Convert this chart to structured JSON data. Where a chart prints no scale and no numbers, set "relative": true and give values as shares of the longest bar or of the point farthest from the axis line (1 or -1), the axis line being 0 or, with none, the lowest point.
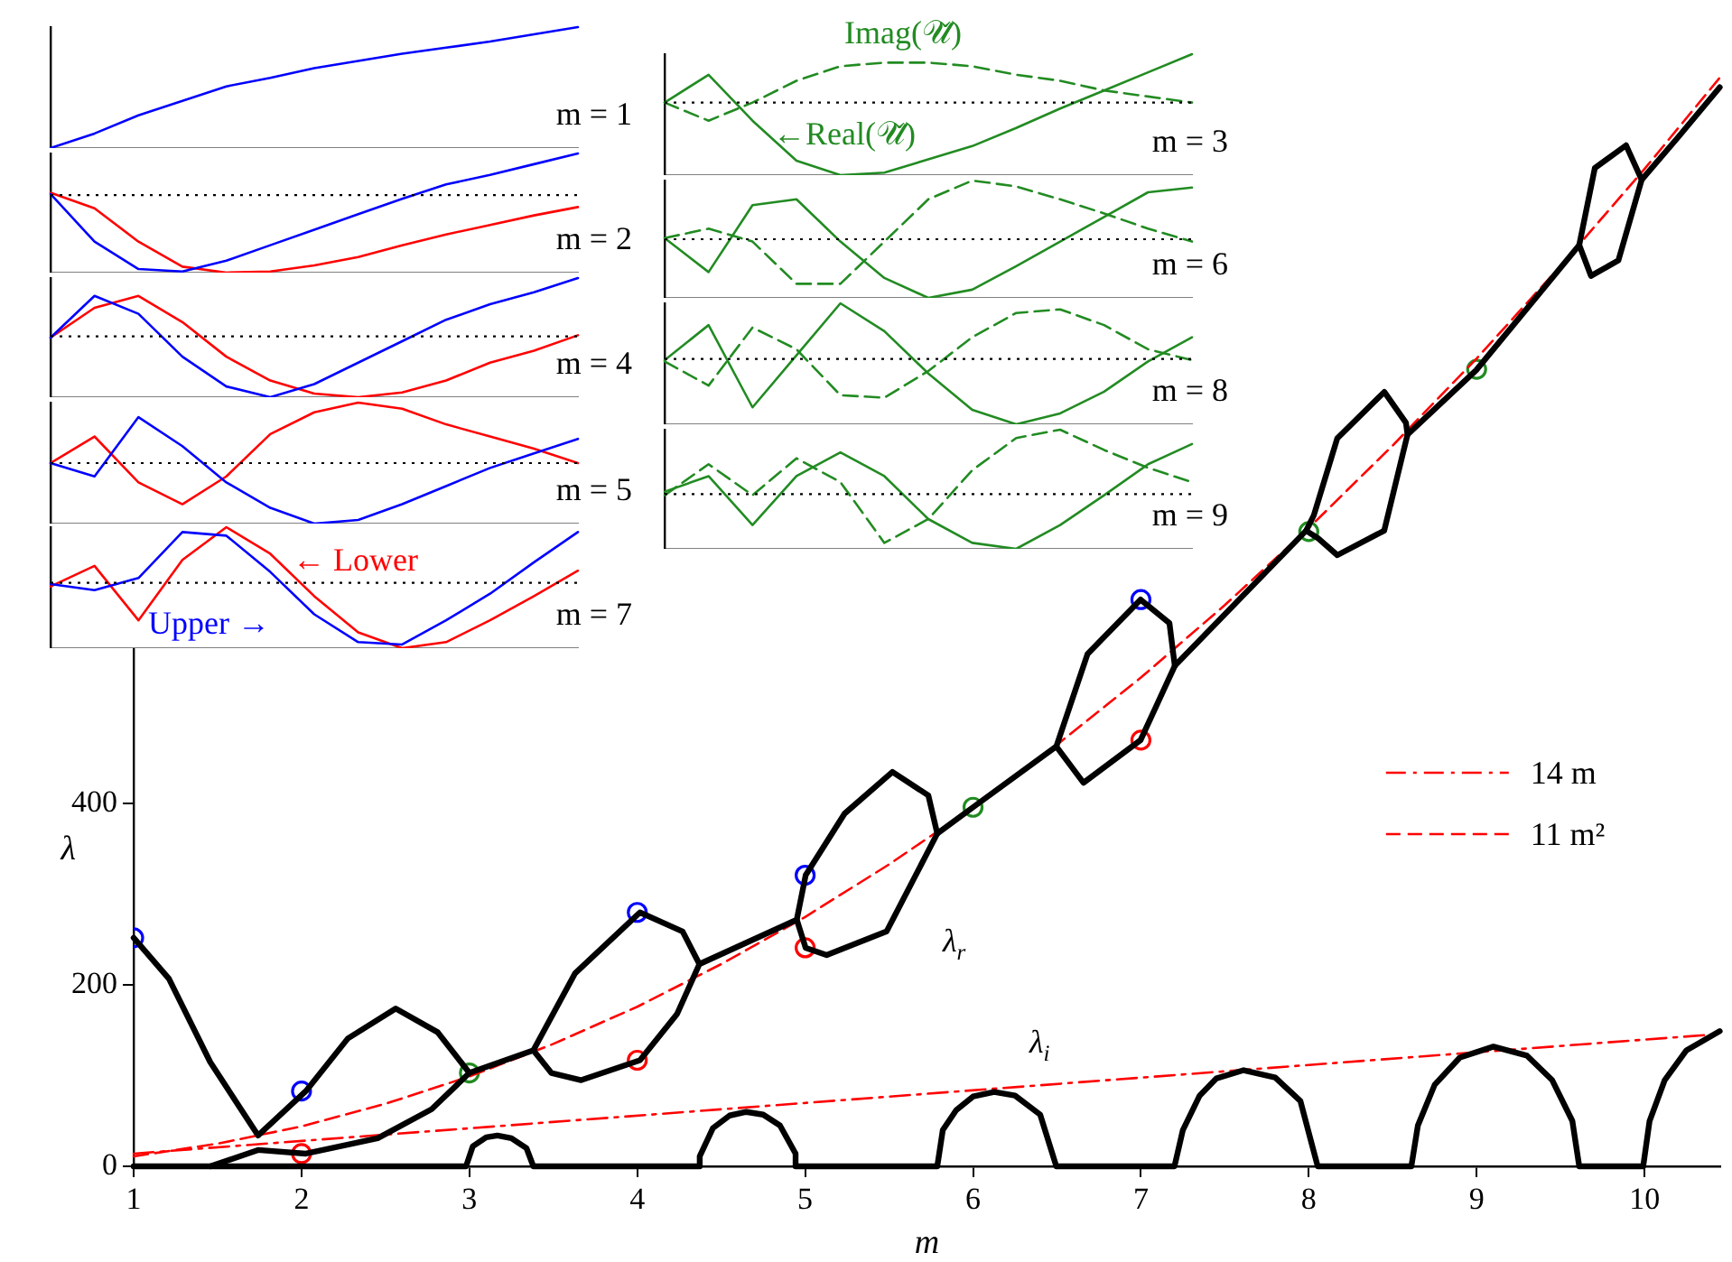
{
  "chart_data": [
    {
      "type": "line",
      "xlabel": "m",
      "ylabel": "λ",
      "xlim": [
        1,
        10.45
      ],
      "ylim": [
        0,
        1260
      ],
      "xticks": [
        1,
        2,
        3,
        4,
        5,
        6,
        7,
        8,
        9,
        10
      ],
      "yticks": [
        0,
        200,
        400
      ],
      "legend": "right",
      "annotations": [
        "λ$_{r}$",
        "λ$_{i}$"
      ],
      "series": [
        {
          "color": "#000000",
          "line_style": "solid",
          "x": [
            1,
            1.21,
            1.456,
            1.741,
            2.026,
            2.276,
            2.561,
            2.81,
            3.0
          ],
          "values": [
            252,
            207,
            115,
            34,
            83,
            141,
            174,
            148,
            103
          ]
        },
        {
          "color": "#000000",
          "line_style": "solid",
          "x": [
            1.456,
            1.741,
            2.026,
            2.454,
            2.775,
            3.0,
            3.381,
            3.63,
            4.016,
            4.27,
            4.37
          ],
          "values": [
            0,
            18,
            14,
            31,
            63,
            103,
            128,
            213,
            280,
            259,
            223
          ]
        },
        {
          "color": "#000000",
          "line_style": "solid",
          "x": [
            3.381,
            3.488,
            3.666,
            4.016,
            4.237,
            4.37,
            4.95,
            5.003,
            5.235,
            5.52,
            5.734,
            5.787
          ],
          "values": [
            128,
            103,
            95,
            117,
            168,
            223,
            272,
            321,
            389,
            435,
            409,
            367
          ]
        },
        {
          "color": "#000000",
          "line_style": "solid",
          "x": [
            4.95,
            5.003,
            5.128,
            5.485,
            5.787,
            6.0,
            6.496,
            6.682,
            6.998,
            7.17,
            7.202
          ],
          "values": [
            272,
            241,
            233,
            259,
            367,
            396,
            463,
            565,
            625,
            599,
            552
          ]
        },
        {
          "color": "#000000",
          "line_style": "solid",
          "x": [
            6.496,
            6.658,
            6.998,
            7.202,
            7.984,
            8.03,
            8.17,
            8.45,
            8.579,
            8.588
          ],
          "values": [
            463,
            423,
            470,
            552,
            701,
            718,
            803,
            854,
            820,
            807
          ]
        },
        {
          "color": "#000000",
          "line_style": "solid",
          "x": [
            7.984,
            8.053,
            8.17,
            8.449,
            8.588,
            8.997,
            9.611,
            9.704,
            9.89,
            9.983
          ],
          "values": [
            701,
            693,
            674,
            701,
            807,
            878,
            1016,
            1101,
            1126,
            1088
          ]
        },
        {
          "color": "#000000",
          "line_style": "solid",
          "x": [
            9.611,
            9.681,
            9.844,
            9.983,
            10.2,
            10.448
          ],
          "values": [
            1016,
            982,
            999,
            1088,
            1135,
            1190
          ]
        },
        {
          "color": "#000000",
          "line_style": "solid",
          "x": [
            1,
            2.98,
            3.02,
            3.1,
            3.167,
            3.25,
            3.34,
            3.381,
            4.372,
            4.372,
            4.45,
            4.55,
            4.65,
            4.75,
            4.85,
            4.943,
            4.943,
            5.787,
            5.82,
            5.9,
            6.0,
            6.126,
            6.25,
            6.4,
            6.496,
            7.2,
            7.25,
            7.35,
            7.45,
            7.612,
            7.8,
            7.95,
            8.053,
            8.611,
            8.65,
            8.75,
            8.9,
            9.1,
            9.3,
            9.45,
            9.57,
            9.611,
            9.992,
            10.03,
            10.12,
            10.25,
            10.448
          ],
          "values": [
            0,
            0,
            22,
            32,
            34,
            31,
            20,
            0,
            0,
            11,
            42,
            56,
            60,
            57,
            45,
            14,
            0,
            0,
            40,
            62,
            77,
            82,
            78,
            57,
            0,
            0,
            40,
            78,
            97,
            106,
            98,
            72,
            0,
            0,
            45,
            90,
            120,
            132,
            122,
            95,
            50,
            0,
            0,
            50,
            95,
            128,
            149
          ]
        },
        {
          "name": "14 m",
          "color": "#ff0000",
          "line_style": "dashdot",
          "x": [
            1,
            10.45
          ],
          "values": [
            14,
            146
          ]
        },
        {
          "name": "11 m²",
          "color": "#ff0000",
          "line_style": "dashed",
          "x": [
            1,
            1.5,
            2,
            2.5,
            3,
            3.5,
            4,
            4.5,
            5,
            5.5,
            6,
            6.5,
            7,
            7.5,
            8,
            8.5,
            9,
            9.5,
            10,
            10.45
          ],
          "values": [
            11,
            25,
            44,
            69,
            99,
            135,
            176,
            223,
            275,
            333,
            396,
            465,
            539,
            619,
            704,
            795,
            891,
            993,
            1100,
            1201
          ]
        },
        {
          "type": "scatter",
          "marker": "circle",
          "color": "#0000ff",
          "x": [
            1,
            2,
            4,
            5,
            7
          ],
          "values": [
            252,
            83,
            280,
            321,
            625
          ]
        },
        {
          "type": "scatter",
          "marker": "circle",
          "color": "#ff0000",
          "x": [
            2,
            4,
            5,
            7
          ],
          "values": [
            14,
            117,
            241,
            470
          ]
        },
        {
          "type": "scatter",
          "marker": "circle",
          "color": "#228b22",
          "x": [
            3,
            6,
            8,
            9
          ],
          "values": [
            103,
            396,
            700,
            879
          ]
        }
      ]
    },
    {
      "type": "line",
      "relative": true,
      "categories": [
        null,
        null,
        null,
        null,
        null,
        null,
        null,
        null,
        null,
        null,
        null,
        null,
        null
      ],
      "annotations": [
        "m = 1"
      ],
      "series": [
        {
          "color": "#0000ff",
          "values": [
            0,
            0.12,
            0.27,
            0.39,
            0.51,
            0.58,
            0.66,
            0.72,
            0.78,
            0.83,
            0.88,
            0.94,
            1
          ]
        }
      ]
    },
    {
      "type": "line",
      "relative": true,
      "categories": [
        null,
        null,
        null,
        null,
        null,
        null,
        null,
        null,
        null,
        null,
        null,
        null,
        null
      ],
      "annotations": [
        "m = 2"
      ],
      "ref_lines": [
        {
          "axis": "y",
          "value": 0.65,
          "line_style": "dotted"
        }
      ],
      "series": [
        {
          "color": "#0000ff",
          "values": [
            0.66,
            0.26,
            0.03,
            0.01,
            0.1,
            0.23,
            0.36,
            0.49,
            0.62,
            0.74,
            0.82,
            0.91,
            1
          ]
        },
        {
          "color": "#ff0000",
          "values": [
            0.67,
            0.54,
            0.26,
            0.05,
            0,
            0.01,
            0.06,
            0.13,
            0.23,
            0.32,
            0.4,
            0.48,
            0.55
          ]
        }
      ]
    },
    {
      "type": "line",
      "relative": true,
      "categories": [
        null,
        null,
        null,
        null,
        null,
        null,
        null,
        null,
        null,
        null,
        null,
        null,
        null
      ],
      "annotations": [
        "m = 4"
      ],
      "ref_lines": [
        {
          "axis": "y",
          "value": 0.51,
          "line_style": "dotted"
        }
      ],
      "series": [
        {
          "color": "#0000ff",
          "values": [
            0.5,
            0.85,
            0.7,
            0.34,
            0.09,
            0,
            0.11,
            0.29,
            0.47,
            0.65,
            0.78,
            0.88,
            1
          ]
        },
        {
          "color": "#ff0000",
          "values": [
            0.5,
            0.75,
            0.85,
            0.63,
            0.34,
            0.14,
            0.03,
            0,
            0.04,
            0.14,
            0.29,
            0.39,
            0.52
          ]
        }
      ]
    },
    {
      "type": "line",
      "relative": true,
      "categories": [
        null,
        null,
        null,
        null,
        null,
        null,
        null,
        null,
        null,
        null,
        null,
        null,
        null
      ],
      "annotations": [
        "m = 5"
      ],
      "ref_lines": [
        {
          "axis": "y",
          "value": 0.5,
          "line_style": "dotted"
        }
      ],
      "series": [
        {
          "color": "#0000ff",
          "values": [
            0.5,
            0.39,
            0.88,
            0.64,
            0.34,
            0.13,
            0,
            0.03,
            0.16,
            0.31,
            0.46,
            0.58,
            0.7
          ]
        },
        {
          "color": "#ff0000",
          "values": [
            0.5,
            0.72,
            0.34,
            0.16,
            0.39,
            0.74,
            0.92,
            1,
            0.95,
            0.82,
            0.72,
            0.62,
            0.5
          ]
        }
      ]
    },
    {
      "type": "line",
      "relative": true,
      "categories": [
        null,
        null,
        null,
        null,
        null,
        null,
        null,
        null,
        null,
        null,
        null,
        null,
        null
      ],
      "annotations": [
        "m = 7",
        "← Lower",
        "Upper →"
      ],
      "ref_lines": [
        {
          "axis": "y",
          "value": 0.54,
          "line_style": "dotted"
        }
      ],
      "series": [
        {
          "color": "#0000ff",
          "values": [
            0.53,
            0.48,
            0.58,
            0.96,
            0.93,
            0.63,
            0.28,
            0.05,
            0.03,
            0.23,
            0.45,
            0.71,
            0.96
          ]
        },
        {
          "color": "#ff0000",
          "values": [
            0.51,
            0.68,
            0.23,
            0.73,
            1,
            0.78,
            0.43,
            0.13,
            0,
            0.05,
            0.23,
            0.43,
            0.64
          ]
        }
      ]
    },
    {
      "type": "line",
      "relative": true,
      "categories": [
        null,
        null,
        null,
        null,
        null,
        null,
        null,
        null,
        null,
        null,
        null,
        null,
        null
      ],
      "annotations": [
        "m = 3",
        "Imag(𝒰̌)",
        "←Real(𝒰̌)"
      ],
      "ref_lines": [
        {
          "axis": "y",
          "value": 0.6,
          "line_style": "dotted"
        }
      ],
      "series": [
        {
          "color": "#228b22",
          "line_style": "solid",
          "values": [
            0.6,
            0.83,
            0.45,
            0.12,
            0,
            0.02,
            0.13,
            0.24,
            0.39,
            0.55,
            0.7,
            0.85,
            1
          ]
        },
        {
          "color": "#228b22",
          "line_style": "dashed",
          "values": [
            0.6,
            0.45,
            0.6,
            0.78,
            0.9,
            0.93,
            0.93,
            0.9,
            0.83,
            0.78,
            0.7,
            0.65,
            0.6
          ]
        }
      ]
    },
    {
      "type": "line",
      "relative": true,
      "categories": [
        null,
        null,
        null,
        null,
        null,
        null,
        null,
        null,
        null,
        null,
        null,
        null,
        null
      ],
      "annotations": [
        "m = 6"
      ],
      "ref_lines": [
        {
          "axis": "y",
          "value": 0.5,
          "line_style": "dotted"
        }
      ],
      "series": [
        {
          "color": "#228b22",
          "line_style": "solid",
          "values": [
            0.51,
            0.22,
            0.79,
            0.84,
            0.48,
            0.17,
            0,
            0.07,
            0.27,
            0.48,
            0.69,
            0.9,
            0.94
          ]
        },
        {
          "color": "#228b22",
          "line_style": "dashed",
          "values": [
            0.51,
            0.59,
            0.48,
            0.12,
            0.12,
            0.48,
            0.84,
            1,
            0.95,
            0.84,
            0.72,
            0.59,
            0.48
          ]
        }
      ]
    },
    {
      "type": "line",
      "relative": true,
      "categories": [
        null,
        null,
        null,
        null,
        null,
        null,
        null,
        null,
        null,
        null,
        null,
        null,
        null
      ],
      "annotations": [
        "m = 8"
      ],
      "ref_lines": [
        {
          "axis": "y",
          "value": 0.54,
          "line_style": "dotted"
        }
      ],
      "series": [
        {
          "color": "#228b22",
          "line_style": "solid",
          "values": [
            0.53,
            0.82,
            0.14,
            0.57,
            1,
            0.77,
            0.42,
            0.12,
            0,
            0.09,
            0.27,
            0.52,
            0.72
          ]
        },
        {
          "color": "#228b22",
          "line_style": "dashed",
          "values": [
            0.52,
            0.32,
            0.8,
            0.62,
            0.24,
            0.22,
            0.44,
            0.72,
            0.92,
            0.95,
            0.82,
            0.62,
            0.53
          ]
        }
      ]
    },
    {
      "type": "line",
      "relative": true,
      "categories": [
        null,
        null,
        null,
        null,
        null,
        null,
        null,
        null,
        null,
        null,
        null,
        null,
        null
      ],
      "annotations": [
        "m = 9"
      ],
      "ref_lines": [
        {
          "axis": "y",
          "value": 0.46,
          "line_style": "dotted"
        }
      ],
      "series": [
        {
          "color": "#228b22",
          "line_style": "solid",
          "values": [
            0.48,
            0.61,
            0.2,
            0.61,
            0.81,
            0.61,
            0.25,
            0.05,
            0,
            0.2,
            0.45,
            0.71,
            0.88
          ]
        },
        {
          "color": "#228b22",
          "line_style": "dashed",
          "values": [
            0.45,
            0.71,
            0.45,
            0.76,
            0.56,
            0.05,
            0.25,
            0.66,
            0.93,
            1,
            0.83,
            0.68,
            0.56
          ]
        }
      ]
    }
  ]
}
